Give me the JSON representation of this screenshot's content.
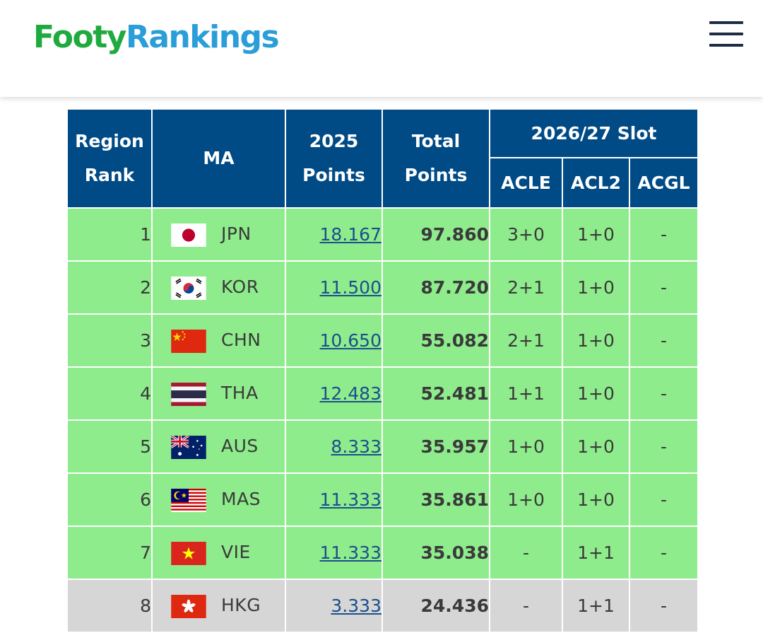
{
  "site": {
    "logo_part1": "Footy",
    "logo_part2": "Rankings"
  },
  "table": {
    "headers": {
      "region_rank": "Region Rank",
      "ma": "MA",
      "points_2025": "2025 Points",
      "total_points": "Total Points",
      "slot_group": "2026/27 Slot",
      "acle": "ACLE",
      "acl2": "ACL2",
      "acgl": "ACGL"
    },
    "rows": [
      {
        "rank": "1",
        "flag": "japan-flag",
        "ma": "JPN",
        "points_2025": "18.167",
        "total": "97.860",
        "acle": "3+0",
        "acl2": "1+0",
        "acgl": "-",
        "status": "green"
      },
      {
        "rank": "2",
        "flag": "south-korea-flag",
        "ma": "KOR",
        "points_2025": "11.500",
        "total": "87.720",
        "acle": "2+1",
        "acl2": "1+0",
        "acgl": "-",
        "status": "green"
      },
      {
        "rank": "3",
        "flag": "china-flag",
        "ma": "CHN",
        "points_2025": "10.650",
        "total": "55.082",
        "acle": "2+1",
        "acl2": "1+0",
        "acgl": "-",
        "status": "green"
      },
      {
        "rank": "4",
        "flag": "thailand-flag",
        "ma": "THA",
        "points_2025": "12.483",
        "total": "52.481",
        "acle": "1+1",
        "acl2": "1+0",
        "acgl": "-",
        "status": "green"
      },
      {
        "rank": "5",
        "flag": "australia-flag",
        "ma": "AUS",
        "points_2025": "8.333",
        "total": "35.957",
        "acle": "1+0",
        "acl2": "1+0",
        "acgl": "-",
        "status": "green"
      },
      {
        "rank": "6",
        "flag": "malaysia-flag",
        "ma": "MAS",
        "points_2025": "11.333",
        "total": "35.861",
        "acle": "1+0",
        "acl2": "1+0",
        "acgl": "-",
        "status": "green"
      },
      {
        "rank": "7",
        "flag": "vietnam-flag",
        "ma": "VIE",
        "points_2025": "11.333",
        "total": "35.038",
        "acle": "-",
        "acl2": "1+1",
        "acgl": "-",
        "status": "green"
      },
      {
        "rank": "8",
        "flag": "hong-kong-flag",
        "ma": "HKG",
        "points_2025": "3.333",
        "total": "24.436",
        "acle": "-",
        "acl2": "1+1",
        "acgl": "-",
        "status": "grey"
      }
    ]
  },
  "colors": {
    "header_bg": "#004a85",
    "qualified_row": "#8fec8c",
    "other_row": "#d6d6d6",
    "link": "#1b4f8c",
    "logo_green": "#1faa3f",
    "logo_blue": "#2a9ed8"
  }
}
